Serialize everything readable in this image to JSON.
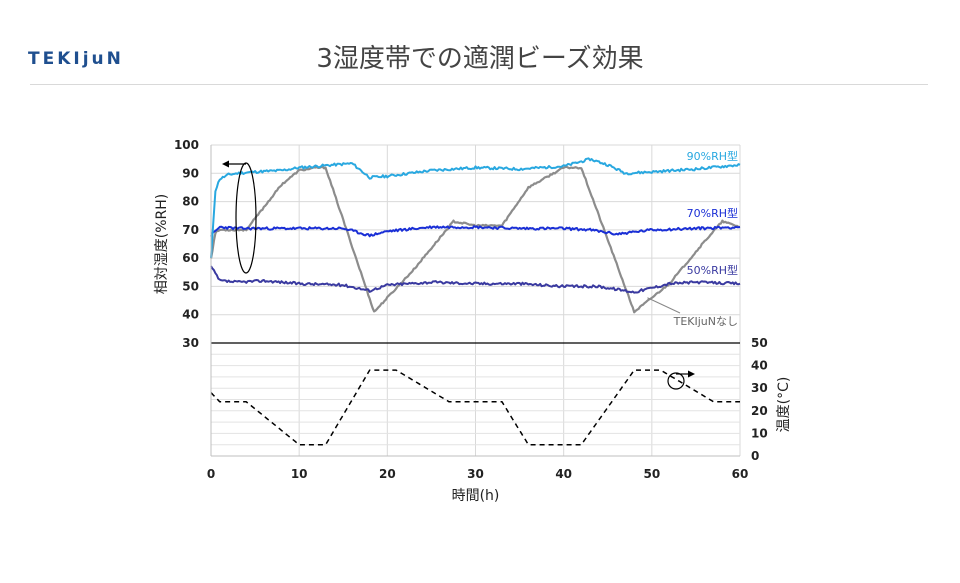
{
  "header": {
    "logo_text": "TEKIjuN",
    "title": "3湿度帯での適潤ビーズ効果"
  },
  "chart_data": {
    "type": "line",
    "xlabel": "時間(h)",
    "x_ticks": [
      "0",
      "10",
      "20",
      "30",
      "40",
      "50",
      "60"
    ],
    "xlim": [
      0,
      60
    ],
    "humidity_axis": {
      "label": "相対湿度(%RH)",
      "ticks": [
        "30",
        "40",
        "50",
        "60",
        "70",
        "80",
        "90",
        "100"
      ],
      "ylim": [
        30,
        100
      ]
    },
    "temperature_axis": {
      "label": "温度(°C)",
      "ticks": [
        "0",
        "10",
        "20",
        "30",
        "40",
        "50"
      ],
      "ylim": [
        0,
        50
      ]
    },
    "grid": true,
    "colors": {
      "rh90": "#29a8e0",
      "rh70": "#1a2fd6",
      "rh50": "#3a3aa0",
      "none": "#8c8c8c",
      "temp": "#000000"
    },
    "series": [
      {
        "name": "90%RH型",
        "x": [
          0,
          0.5,
          1,
          2,
          3,
          5,
          8,
          10,
          12,
          14,
          16,
          18,
          20,
          25,
          30,
          35,
          40,
          43,
          45,
          47,
          50,
          55,
          60
        ],
        "y": [
          60,
          84,
          88,
          89.5,
          90,
          90.5,
          91,
          92,
          92.5,
          93,
          93.5,
          88.5,
          89,
          91,
          92,
          91.5,
          92.5,
          95,
          93,
          90,
          90.5,
          91.5,
          93
        ]
      },
      {
        "name": "70%RH型",
        "x": [
          0,
          1,
          3,
          6,
          10,
          15,
          18,
          20,
          25,
          30,
          35,
          40,
          43,
          46,
          50,
          55,
          60
        ],
        "y": [
          68,
          71,
          70.5,
          70.5,
          70.5,
          70.5,
          68,
          69.5,
          71,
          71,
          70.5,
          70.5,
          70,
          68.5,
          70,
          70.5,
          71
        ]
      },
      {
        "name": "50%RH型",
        "x": [
          0,
          1,
          3,
          6,
          10,
          15,
          18,
          20,
          25,
          30,
          35,
          40,
          44,
          48,
          52,
          55,
          60
        ],
        "y": [
          57,
          52,
          51.5,
          52,
          51,
          50.5,
          48.5,
          50.5,
          51.5,
          51,
          51,
          50,
          50,
          48,
          51,
          51.5,
          51
        ]
      },
      {
        "name": "TEKIjuNなし",
        "x": [
          0,
          0.5,
          1,
          4,
          6,
          8,
          10,
          12,
          13,
          18.5,
          23,
          27.5,
          30,
          33,
          36,
          40,
          42,
          48,
          52,
          56,
          58,
          60
        ],
        "y": [
          60,
          69,
          70,
          70,
          78,
          86,
          91,
          92,
          92,
          41,
          56,
          73,
          71.5,
          71.5,
          85,
          92,
          92,
          41,
          51,
          66,
          73,
          71
        ]
      },
      {
        "name": "温度",
        "axis": "temperature",
        "x": [
          0,
          1,
          4,
          10,
          13,
          18,
          21,
          27,
          33,
          36,
          42,
          48,
          51,
          57,
          60
        ],
        "y": [
          28,
          24,
          24,
          5,
          5,
          38,
          38,
          24,
          24,
          5,
          5,
          38,
          38,
          24,
          24
        ]
      }
    ],
    "annotations": [
      {
        "text": "90%RH型",
        "series": "90%RH型"
      },
      {
        "text": "70%RH型",
        "series": "70%RH型"
      },
      {
        "text": "50%RH型",
        "series": "50%RH型"
      },
      {
        "text": "TEKIjuNなし",
        "series": "TEKIjuNなし"
      }
    ]
  }
}
